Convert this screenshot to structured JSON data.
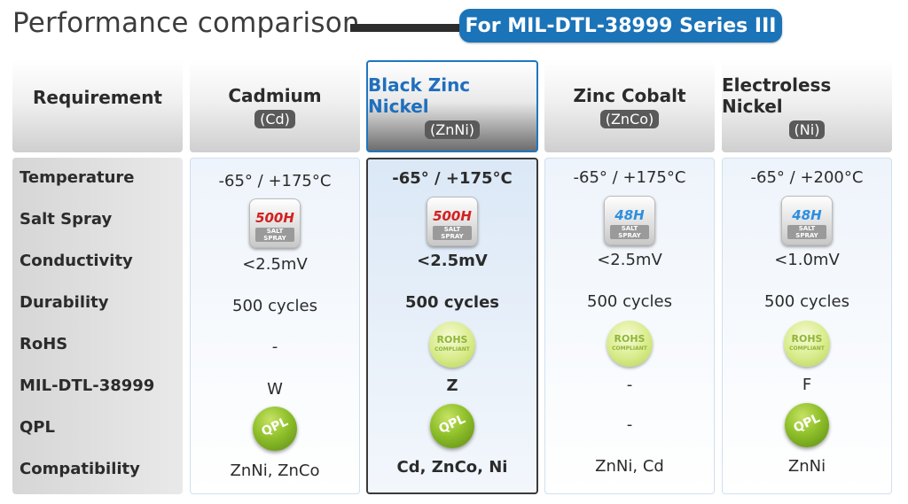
{
  "title": "Performance comparison",
  "series_label": "For MIL-DTL-38999 Series III",
  "requirement_header": "Requirement",
  "requirements": [
    "Temperature",
    "Salt Spray",
    "Conductivity",
    "Durability",
    "RoHS",
    "MIL-DTL-38999",
    "QPL",
    "Compatibility"
  ],
  "columns": [
    {
      "name": "Cadmium",
      "abbr": "(Cd)",
      "highlighted": false,
      "temperature": "-65° / +175°C",
      "salt_spray": {
        "hours": "500H",
        "label": "SALT SPRAY",
        "color": "red"
      },
      "conductivity": "<2.5mV",
      "durability": "500 cycles",
      "rohs": {
        "text": "-"
      },
      "mil_code": "W",
      "qpl": {
        "badge": "QPL"
      },
      "compatibility": "ZnNi, ZnCo"
    },
    {
      "name": "Black Zinc Nickel",
      "abbr": "(ZnNi)",
      "highlighted": true,
      "temperature": "-65° / +175°C",
      "salt_spray": {
        "hours": "500H",
        "label": "SALT SPRAY",
        "color": "red"
      },
      "conductivity": "<2.5mV",
      "durability": "500 cycles",
      "rohs": {
        "badge": "ROHS",
        "sub": "COMPLIANT"
      },
      "mil_code": "Z",
      "qpl": {
        "badge": "QPL"
      },
      "compatibility": "Cd, ZnCo, Ni"
    },
    {
      "name": "Zinc Cobalt",
      "abbr": "(ZnCo)",
      "highlighted": false,
      "temperature": "-65° / +175°C",
      "salt_spray": {
        "hours": "48H",
        "label": "SALT SPRAY",
        "color": "blue"
      },
      "conductivity": "<2.5mV",
      "durability": "500 cycles",
      "rohs": {
        "badge": "ROHS",
        "sub": "COMPLIANT"
      },
      "mil_code": "-",
      "qpl": {
        "text": "-"
      },
      "compatibility": "ZnNi, Cd"
    },
    {
      "name": "Electroless Nickel",
      "abbr": "(Ni)",
      "highlighted": false,
      "temperature": "-65° / +200°C",
      "salt_spray": {
        "hours": "48H",
        "label": "SALT SPRAY",
        "color": "blue"
      },
      "conductivity": "<1.0mV",
      "durability": "500 cycles",
      "rohs": {
        "badge": "ROHS",
        "sub": "COMPLIANT"
      },
      "mil_code": "F",
      "qpl": {
        "badge": "QPL"
      },
      "compatibility": "ZnNi"
    }
  ]
}
